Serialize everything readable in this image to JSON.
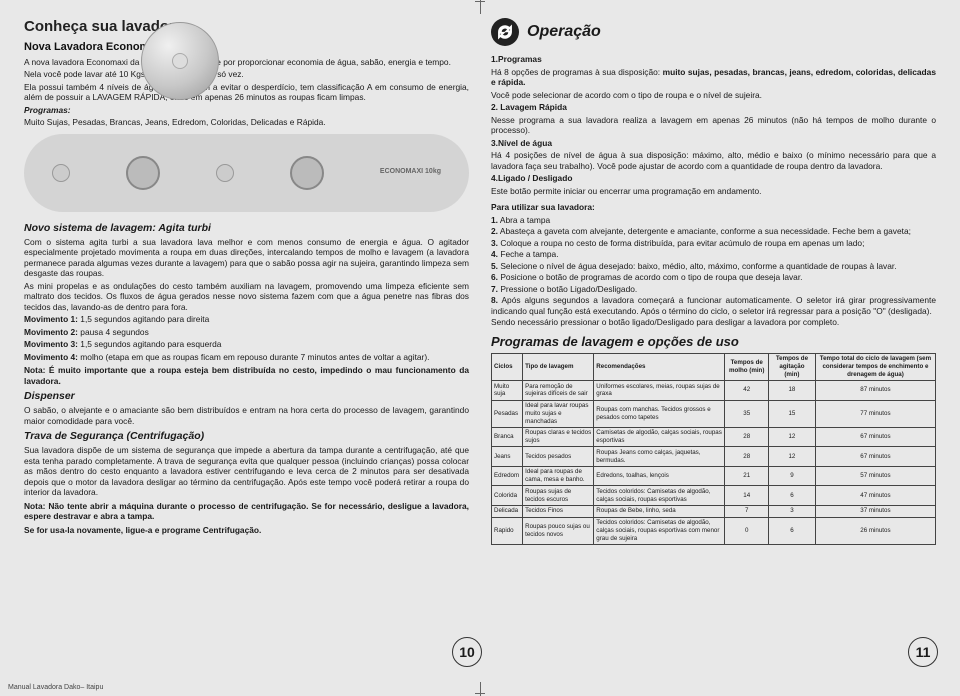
{
  "left": {
    "title": "Conheça sua lavadora",
    "subtitle": "Nova Lavadora Economaxi",
    "p1": "A nova lavadora Economaxi da Dako tem esse nome por proporcionar economia de água, sabão, energia e tempo.",
    "p2": "Nela você pode lavar até 10 Kgs de roupas de uma só vez.",
    "p3": "Ela possui também 4 níveis de água que ajudam a evitar o desperdício, tem classificação A em consumo de energia, além de possuir a LAVAGEM RÁPIDA, onde em apenas 26 minutos as roupas ficam limpas.",
    "programas_lead": "Programas:",
    "programas_body": "Muito Sujas, Pesadas, Brancas, Jeans, Edredom, Coloridas, Delicadas e Rápida.",
    "novo_head": "Novo sistema de lavagem: Agita turbi",
    "novo_p1": "Com o sistema agita turbi a sua lavadora lava melhor e com menos consumo de energia e água. O agitador especialmente projetado movimenta a roupa em duas direções, intercalando tempos de molho e lavagem (a lavadora permanece parada algumas vezes durante a lavagem) para que o sabão possa agir na sujeira, garantindo limpeza sem desgaste das roupas.",
    "novo_p2": "As mini propelas e as ondulações do cesto também auxiliam na lavagem, promovendo uma limpeza eficiente sem maltrato dos tecidos. Os fluxos de água gerados nesse novo sistema fazem com que a água penetre nas fibras dos tecidos das, lavando-as de dentro para fora.",
    "mov1_lead": "Movimento 1:",
    "mov1": " 1,5 segundos agitando para direita",
    "mov2_lead": "Movimento 2:",
    "mov2": " pausa 4 segundos",
    "mov3_lead": "Movimento 3:",
    "mov3": " 1,5 segundos agitando para esquerda",
    "mov4_lead": "Movimento 4:",
    "mov4": " molho (etapa em que as roupas ficam em repouso durante 7 minutos antes de voltar a agitar).",
    "nota1": "Nota: É muito importante que a roupa esteja bem distribuída no cesto, impedindo o mau funcionamento da lavadora.",
    "dispenser_head": "Dispenser",
    "dispenser_body": "O sabão, o alvejante e o amaciante são bem distribuídos e entram na hora certa do processo de lavagem, garantindo maior comodidade para você.",
    "trava_head": "Trava de Segurança (Centrifugação)",
    "trava_body": "Sua lavadora dispõe de um sistema de segurança que impede a abertura da tampa durante a centrifugação, até que esta tenha parado completamente. A trava de segurança evita que qualquer pessoa (incluindo crianças) possa colocar as mãos dentro do cesto enquanto a lavadora estiver centrifugando e leva cerca de 2 minutos para ser desativada depois que o motor da lavadora desligar ao término da centrifugação. Após este tempo você poderá retirar a roupa do interior da lavadora.",
    "nota2a": "Nota: Não tente abrir a máquina durante o processo de centrifugação. Se for necessário, desligue a lavadora, espere destravar e abra a tampa.",
    "nota2b": "Se for usa-la novamente, ligue-a e programe Centrifugação.",
    "pagenum": "10",
    "panel_brand": "ECONOMAXI 10kg"
  },
  "right": {
    "title": "Operação",
    "s1_head": "1.Programas",
    "s1_p1a": "Há 8 opções de programas à sua disposição: ",
    "s1_p1b": "muito sujas, pesadas, brancas, jeans, edredom, coloridas, delicadas e rápida.",
    "s1_p2": "Você pode selecionar de acordo com o tipo de roupa e o nível de sujeira.",
    "s2_head": "2. Lavagem Rápida",
    "s2_body": "Nesse programa a sua lavadora realiza a lavagem em apenas 26 minutos (não há tempos de molho durante o processo).",
    "s3_head": "3.Nível de água",
    "s3_body": "Há 4 posições de nível de água à sua disposição: máximo, alto, médio e baixo (o mínimo necessário para que a lavadora faça seu trabalho). Você pode ajustar de acordo com a quantidade de roupa dentro da lavadora.",
    "s4_head": "4.Ligado / Desligado",
    "s4_body": "Este botão permite iniciar ou encerrar uma programação em andamento.",
    "util_head": "Para utilizar sua lavadora:",
    "steps": [
      {
        "n": "1.",
        "t": " Abra a tampa"
      },
      {
        "n": "2.",
        "t": " Abasteça a gaveta com alvejante, detergente e amaciante, conforme a sua necessidade. Feche bem a gaveta;"
      },
      {
        "n": "3.",
        "t": " Coloque a roupa no cesto de forma distribuída, para evitar acúmulo de roupa em apenas um lado;"
      },
      {
        "n": "4.",
        "t": " Feche a tampa."
      },
      {
        "n": "5.",
        "t": " Selecione o nível de água desejado: baixo, médio, alto, máximo, conforme a quantidade de roupas à lavar."
      },
      {
        "n": "6.",
        "t": " Posicione o botão de programas de acordo com o tipo de roupa que deseja lavar."
      },
      {
        "n": "7.",
        "t": " Pressione o botão Ligado/Desligado."
      },
      {
        "n": "8.",
        "t": " Após alguns segundos a lavadora começará a funcionar automaticamente. O seletor irá girar progressivamente indicando qual função está executando. Após o término do ciclo, o seletor irá regressar para a posição \"O\" (desligada)."
      }
    ],
    "final_p": "Sendo necessário pressionar o botão ligado/Desligado para desligar a lavadora por completo.",
    "table_head": "Programas de lavagem e opções de uso",
    "table": {
      "cols": [
        "Ciclos",
        "Tipo de lavagem",
        "Recomendações",
        "Tempos de molho (min)",
        "Tempos de agitação (min)",
        "Tempo total do ciclo de lavagem (sem considerar tempos de enchimento e drenagem de água)"
      ],
      "rows": [
        [
          "Muito suja",
          "Para remoção de sujeiras difíceis de sair",
          "Uniformes escolares, meias, roupas sujas de graxa",
          "42",
          "18",
          "87 minutos"
        ],
        [
          "Pesadas",
          "Ideal para lavar roupas muito sujas e manchadas",
          "Roupas com manchas. Tecidos grossos e pesados como tapetes",
          "35",
          "15",
          "77 minutos"
        ],
        [
          "Branca",
          "Roupas claras e tecidos sujos",
          "Camisetas de algodão, calças sociais, roupas esportivas",
          "28",
          "12",
          "67 minutos"
        ],
        [
          "Jeans",
          "Tecidos pesados",
          "Roupas Jeans como calças, jaquetas, bermudas.",
          "28",
          "12",
          "67 minutos"
        ],
        [
          "Edredom",
          "Ideal para roupas de cama, mesa e banho.",
          "Edredons, toalhas, lençois",
          "21",
          "9",
          "57 minutos"
        ],
        [
          "Colorida",
          "Roupas sujas de tecidos escuros",
          "Tecidos coloridos: Camisetas de algodão, calças sociais, roupas esportivas",
          "14",
          "6",
          "47 minutos"
        ],
        [
          "Delicada",
          "Tecidos Finos",
          "Roupas de Bebe, linho, seda",
          "7",
          "3",
          "37 minutos"
        ],
        [
          "Rapido",
          "Roupas pouco sujas ou tecidos novos",
          "Tecidos coloridos: Camisetas de algodão, calças sociais, roupas esportivas com menor grau de sujeira",
          "0",
          "6",
          "26 minutos"
        ]
      ]
    },
    "pagenum": "11"
  },
  "footer": "Manual Lavadora Dako– Itaipu",
  "colors": {
    "bg": "#e8e8e8",
    "text": "#1a1a1a",
    "icon_bg": "#222222"
  }
}
